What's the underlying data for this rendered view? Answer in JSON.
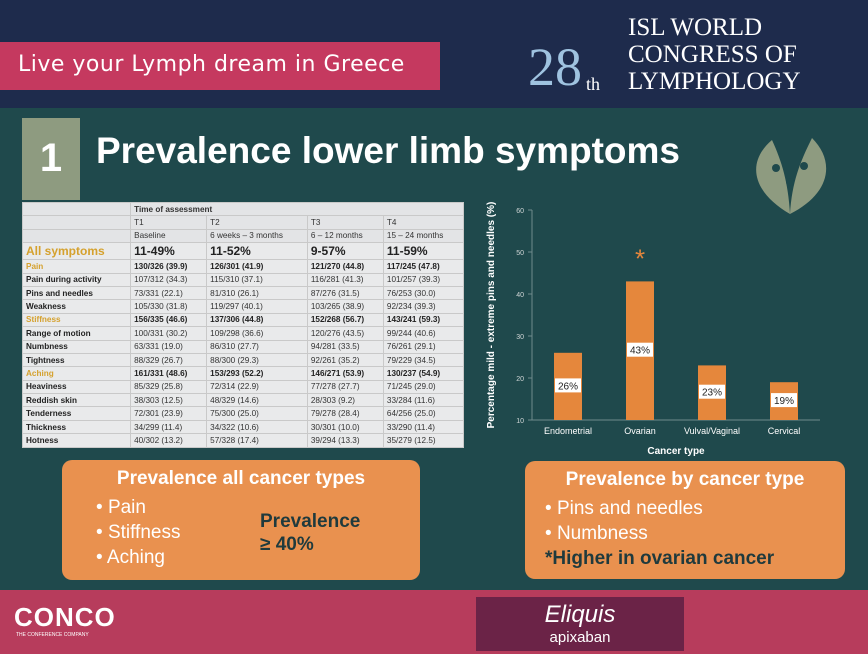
{
  "banner": "Live your Lymph dream in Greece",
  "logo": {
    "number": "28",
    "suffix": "th",
    "lines": [
      "ISL WORLD",
      "CONGRESS OF",
      "LYMPHOLOGY"
    ]
  },
  "slide": {
    "number": "1",
    "title": "Prevalence lower limb symptoms"
  },
  "table": {
    "header": "Time of assessment",
    "columns": [
      {
        "id": "T1",
        "label": "Baseline"
      },
      {
        "id": "T2",
        "label": "6 weeks – 3 months"
      },
      {
        "id": "T3",
        "label": "6 – 12 months"
      },
      {
        "id": "T4",
        "label": "15 – 24 months"
      }
    ],
    "rows": [
      {
        "label": "All symptoms",
        "values": [
          "11-49%",
          "11-52%",
          "9-57%",
          "11-59%"
        ],
        "highlight": true
      },
      {
        "label": "Pain",
        "values": [
          "130/326 (39.9)",
          "126/301 (41.9)",
          "121/270 (44.8)",
          "117/245 (47.8)"
        ],
        "highlight": true
      },
      {
        "label": "Pain during activity",
        "values": [
          "107/312 (34.3)",
          "115/310 (37.1)",
          "116/281 (41.3)",
          "101/257 (39.3)"
        ],
        "highlight": false
      },
      {
        "label": "Pins and needles",
        "values": [
          "73/331 (22.1)",
          "81/310 (26.1)",
          "87/276 (31.5)",
          "76/253 (30.0)"
        ],
        "highlight": false
      },
      {
        "label": "Weakness",
        "values": [
          "105/330 (31.8)",
          "119/297 (40.1)",
          "103/265 (38.9)",
          "92/234 (39.3)"
        ],
        "highlight": false
      },
      {
        "label": "Stiffness",
        "values": [
          "156/335 (46.6)",
          "137/306 (44.8)",
          "152/268 (56.7)",
          "143/241 (59.3)"
        ],
        "highlight": true
      },
      {
        "label": "Range of motion",
        "values": [
          "100/331 (30.2)",
          "109/298 (36.6)",
          "120/276 (43.5)",
          "99/244 (40.6)"
        ],
        "highlight": false
      },
      {
        "label": "Numbness",
        "values": [
          "63/331 (19.0)",
          "86/310 (27.7)",
          "94/281 (33.5)",
          "76/261 (29.1)"
        ],
        "highlight": false
      },
      {
        "label": "Tightness",
        "values": [
          "88/329 (26.7)",
          "88/300 (29.3)",
          "92/261 (35.2)",
          "79/229 (34.5)"
        ],
        "highlight": false
      },
      {
        "label": "Aching",
        "values": [
          "161/331 (48.6)",
          "153/293 (52.2)",
          "146/271 (53.9)",
          "130/237 (54.9)"
        ],
        "highlight": true
      },
      {
        "label": "Heaviness",
        "values": [
          "85/329 (25.8)",
          "72/314 (22.9)",
          "77/278 (27.7)",
          "71/245 (29.0)"
        ],
        "highlight": false
      },
      {
        "label": "Reddish skin",
        "values": [
          "38/303 (12.5)",
          "48/329 (14.6)",
          "28/303 (9.2)",
          "33/284 (11.6)"
        ],
        "highlight": false
      },
      {
        "label": "Tenderness",
        "values": [
          "72/301 (23.9)",
          "75/300 (25.0)",
          "79/278 (28.4)",
          "64/256 (25.0)"
        ],
        "highlight": false
      },
      {
        "label": "Thickness",
        "values": [
          "34/299 (11.4)",
          "34/322 (10.6)",
          "30/301 (10.0)",
          "33/290 (11.4)"
        ],
        "highlight": false
      },
      {
        "label": "Hotness",
        "values": [
          "40/302 (13.2)",
          "57/328 (17.4)",
          "39/294 (13.3)",
          "35/279 (12.5)"
        ],
        "highlight": false
      }
    ]
  },
  "chart_data": {
    "type": "bar",
    "y_label": "Percentage mild - extreme pins and needles (%)",
    "x_label": "Cancer type",
    "categories": [
      "Endometrial",
      "Ovarian",
      "Vulval/Vaginal",
      "Cervical"
    ],
    "values": [
      26,
      43,
      23,
      19
    ],
    "value_labels": [
      "26%",
      "43%",
      "23%",
      "19%"
    ],
    "color": "#e5873c",
    "ylim": [
      10,
      60
    ],
    "yticks": [
      10,
      20,
      30,
      40,
      50,
      60
    ],
    "annotation": {
      "text": "*",
      "category": 1
    }
  },
  "boxes": [
    {
      "title": "Prevalence all cancer types",
      "bullets": [
        "Pain",
        "Stiffness",
        "Aching"
      ],
      "note": [
        "Prevalence",
        "≥ 40%"
      ]
    },
    {
      "title": "Prevalence by cancer type",
      "bullets": [
        "Pins and needles",
        "Numbness"
      ],
      "note": [
        "*Higher in ovarian cancer"
      ]
    }
  ],
  "footer": {
    "company": "CONCO",
    "tagline": "THE CONFERENCE COMPANY",
    "sponsor": "Eliquis",
    "sponsor_sub": "apixaban"
  }
}
